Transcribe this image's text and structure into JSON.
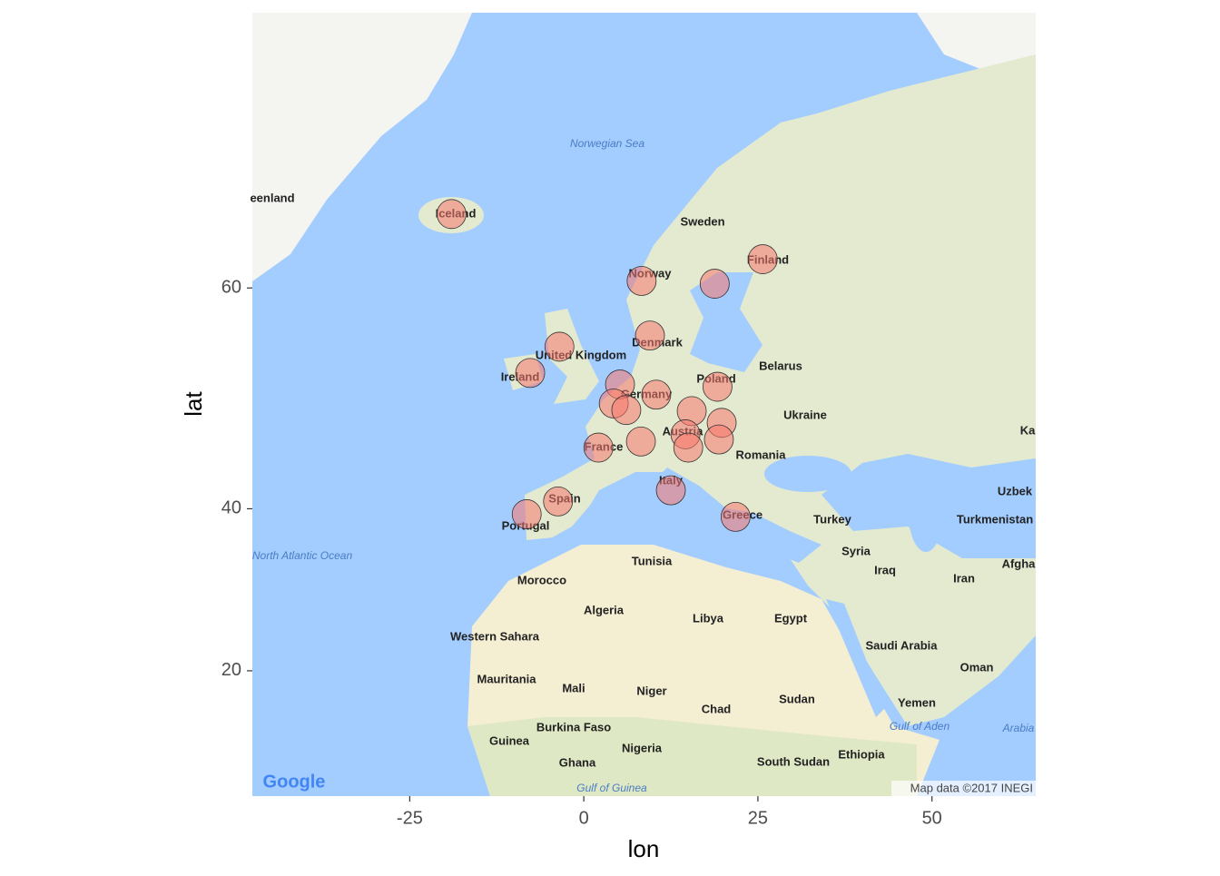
{
  "chart_data": {
    "type": "scatter",
    "x_label": "lon",
    "y_label": "lat",
    "xlim": [
      -47.6,
      64.9
    ],
    "ylim": [
      2.4,
      74.7
    ],
    "y_scale": "mercator",
    "xticks": [
      -25,
      0,
      25,
      50
    ],
    "yticks": [
      20,
      40,
      60
    ],
    "color": "rgba(248,118,109,0.55)",
    "stroke": "#333333",
    "x": [
      -19.0,
      8.3,
      18.8,
      25.7,
      9.5,
      -3.5,
      -7.7,
      5.2,
      19.2,
      10.4,
      4.3,
      6.1,
      15.5,
      19.8,
      14.6,
      8.2,
      19.4,
      15.0,
      2.1,
      12.5,
      -3.7,
      -8.2,
      21.8
    ],
    "values": [
      64.9,
      60.5,
      60.3,
      62.0,
      56.4,
      55.5,
      53.3,
      52.3,
      52.1,
      51.4,
      50.6,
      50.0,
      49.9,
      48.8,
      47.7,
      47.0,
      47.2,
      46.4,
      46.4,
      42.0,
      40.8,
      39.4,
      39.1
    ],
    "map_labels": [
      "Iceland",
      "Norway",
      "Sweden",
      "Finland",
      "Denmark",
      "United Kingdom",
      "Ireland",
      "Poland",
      "Belarus",
      "Germany",
      "Ukraine",
      "Austria",
      "France",
      "Romania",
      "Italy",
      "Spain",
      "Portugal",
      "Greece",
      "Turkey",
      "Syria",
      "Iraq",
      "Iran",
      "Morocco",
      "Algeria",
      "Libya",
      "Egypt",
      "Tunisia",
      "Western Sahara",
      "Mauritania",
      "Mali",
      "Niger",
      "Chad",
      "Sudan",
      "Saudi Arabia",
      "Yemen",
      "Oman",
      "Nigeria",
      "Ethiopia",
      "South Sudan",
      "Guinea",
      "Ghana",
      "Burkina Faso",
      "Turkmenistan",
      "Uzbek",
      "Afgha",
      "Ka",
      "eenland"
    ],
    "sea_labels": [
      "Norwegian Sea",
      "North Atlantic Ocean",
      "Gulf of Guinea",
      "Gulf of Aden",
      "Arabia"
    ],
    "attribution": "Map data ©2017 INEGI",
    "logo": "Google"
  }
}
